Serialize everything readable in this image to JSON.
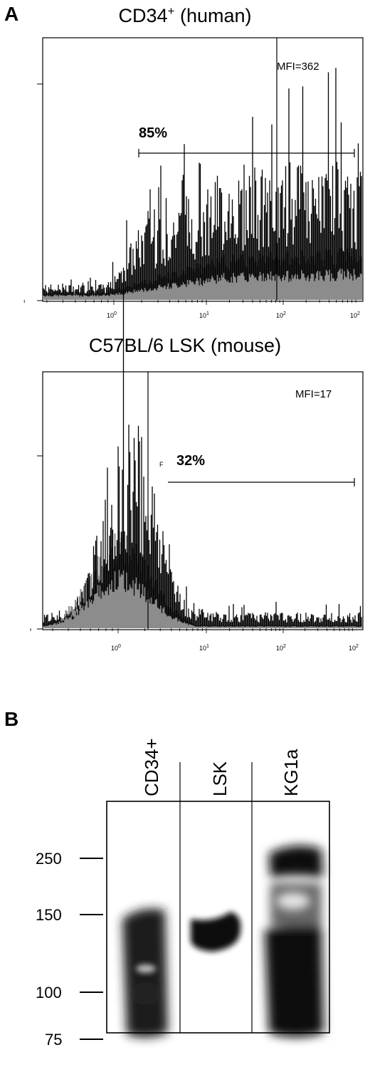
{
  "panel_a": {
    "label": "A",
    "histograms": [
      {
        "title": "CD34",
        "title_sup": "+",
        "title_suffix": " (human)",
        "mfi": "MFI=362",
        "percent": "85%",
        "x_ticks": [
          {
            "base": "10",
            "exp": "0"
          },
          {
            "base": "10",
            "exp": "1"
          },
          {
            "base": "10",
            "exp": "2"
          },
          {
            "base": "10",
            "exp": "2"
          }
        ]
      },
      {
        "title": "C57BL/6 LSK (mouse)",
        "mfi": "MFI=17",
        "percent": "32%",
        "gate_marker": "F",
        "x_ticks": [
          {
            "base": "10",
            "exp": "0"
          },
          {
            "base": "10",
            "exp": "1"
          },
          {
            "base": "10",
            "exp": "2"
          },
          {
            "base": "10",
            "exp": "2"
          }
        ]
      }
    ]
  },
  "panel_b": {
    "label": "B",
    "lanes": [
      "CD34+",
      "LSK",
      "KG1a"
    ],
    "mw_markers": [
      "250",
      "150",
      "100",
      "75"
    ]
  }
}
